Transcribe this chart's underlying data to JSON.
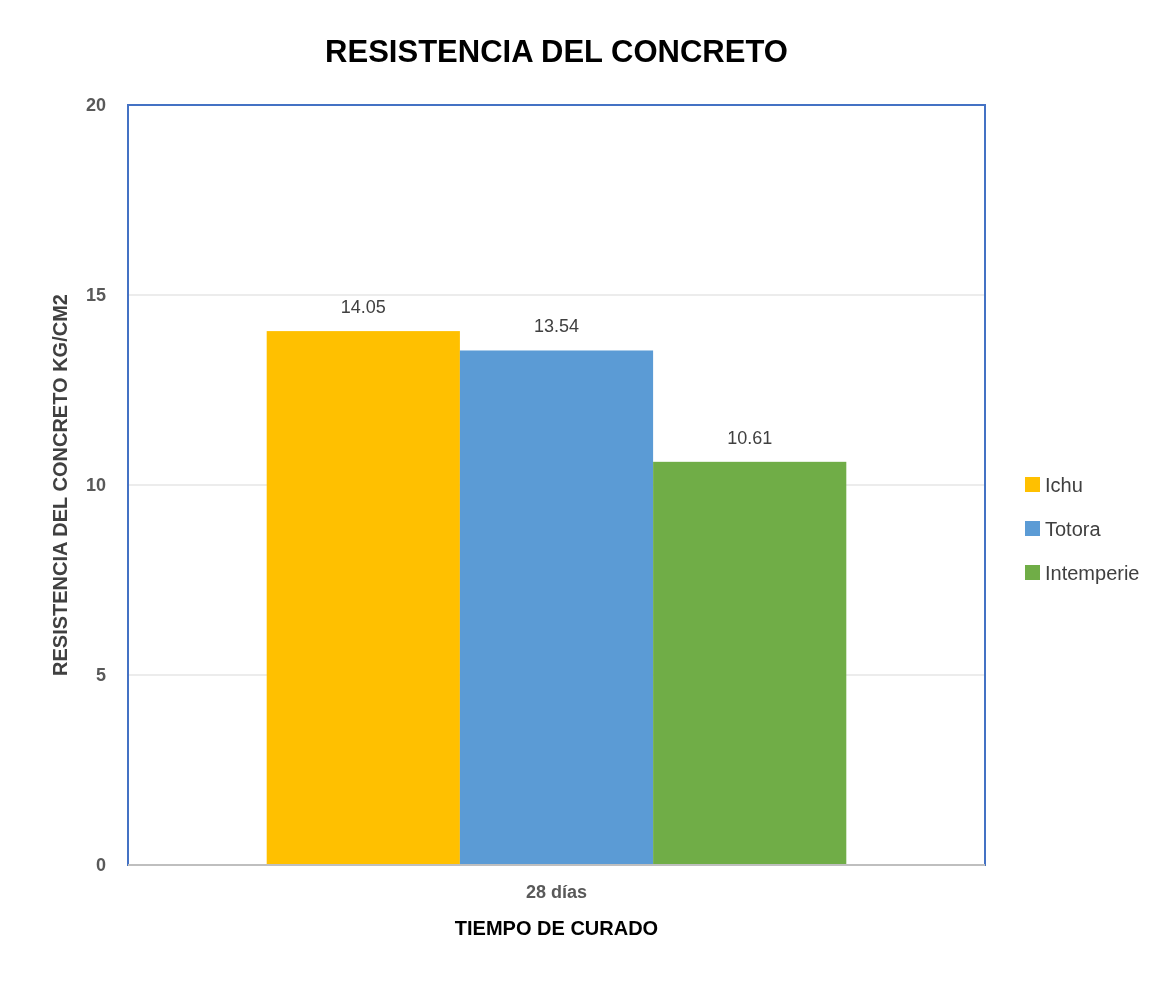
{
  "chart_data": {
    "type": "bar",
    "title": "RESISTENCIA DEL CONCRETO",
    "xlabel": "TIEMPO DE CURADO",
    "ylabel": "RESISTENCIA DEL CONCRETO KG/CM2",
    "categories": [
      "28 días"
    ],
    "series": [
      {
        "name": "Ichu",
        "color": "#ffc000",
        "values": [
          14.05
        ]
      },
      {
        "name": "Totora",
        "color": "#5b9bd5",
        "values": [
          13.54
        ]
      },
      {
        "name": "Intemperie",
        "color": "#70ad47",
        "values": [
          10.61
        ]
      }
    ],
    "ylim": [
      0,
      20
    ],
    "yticks": [
      0,
      5,
      10,
      15,
      20
    ],
    "grid": "y",
    "legend": "right",
    "data_labels": true
  }
}
